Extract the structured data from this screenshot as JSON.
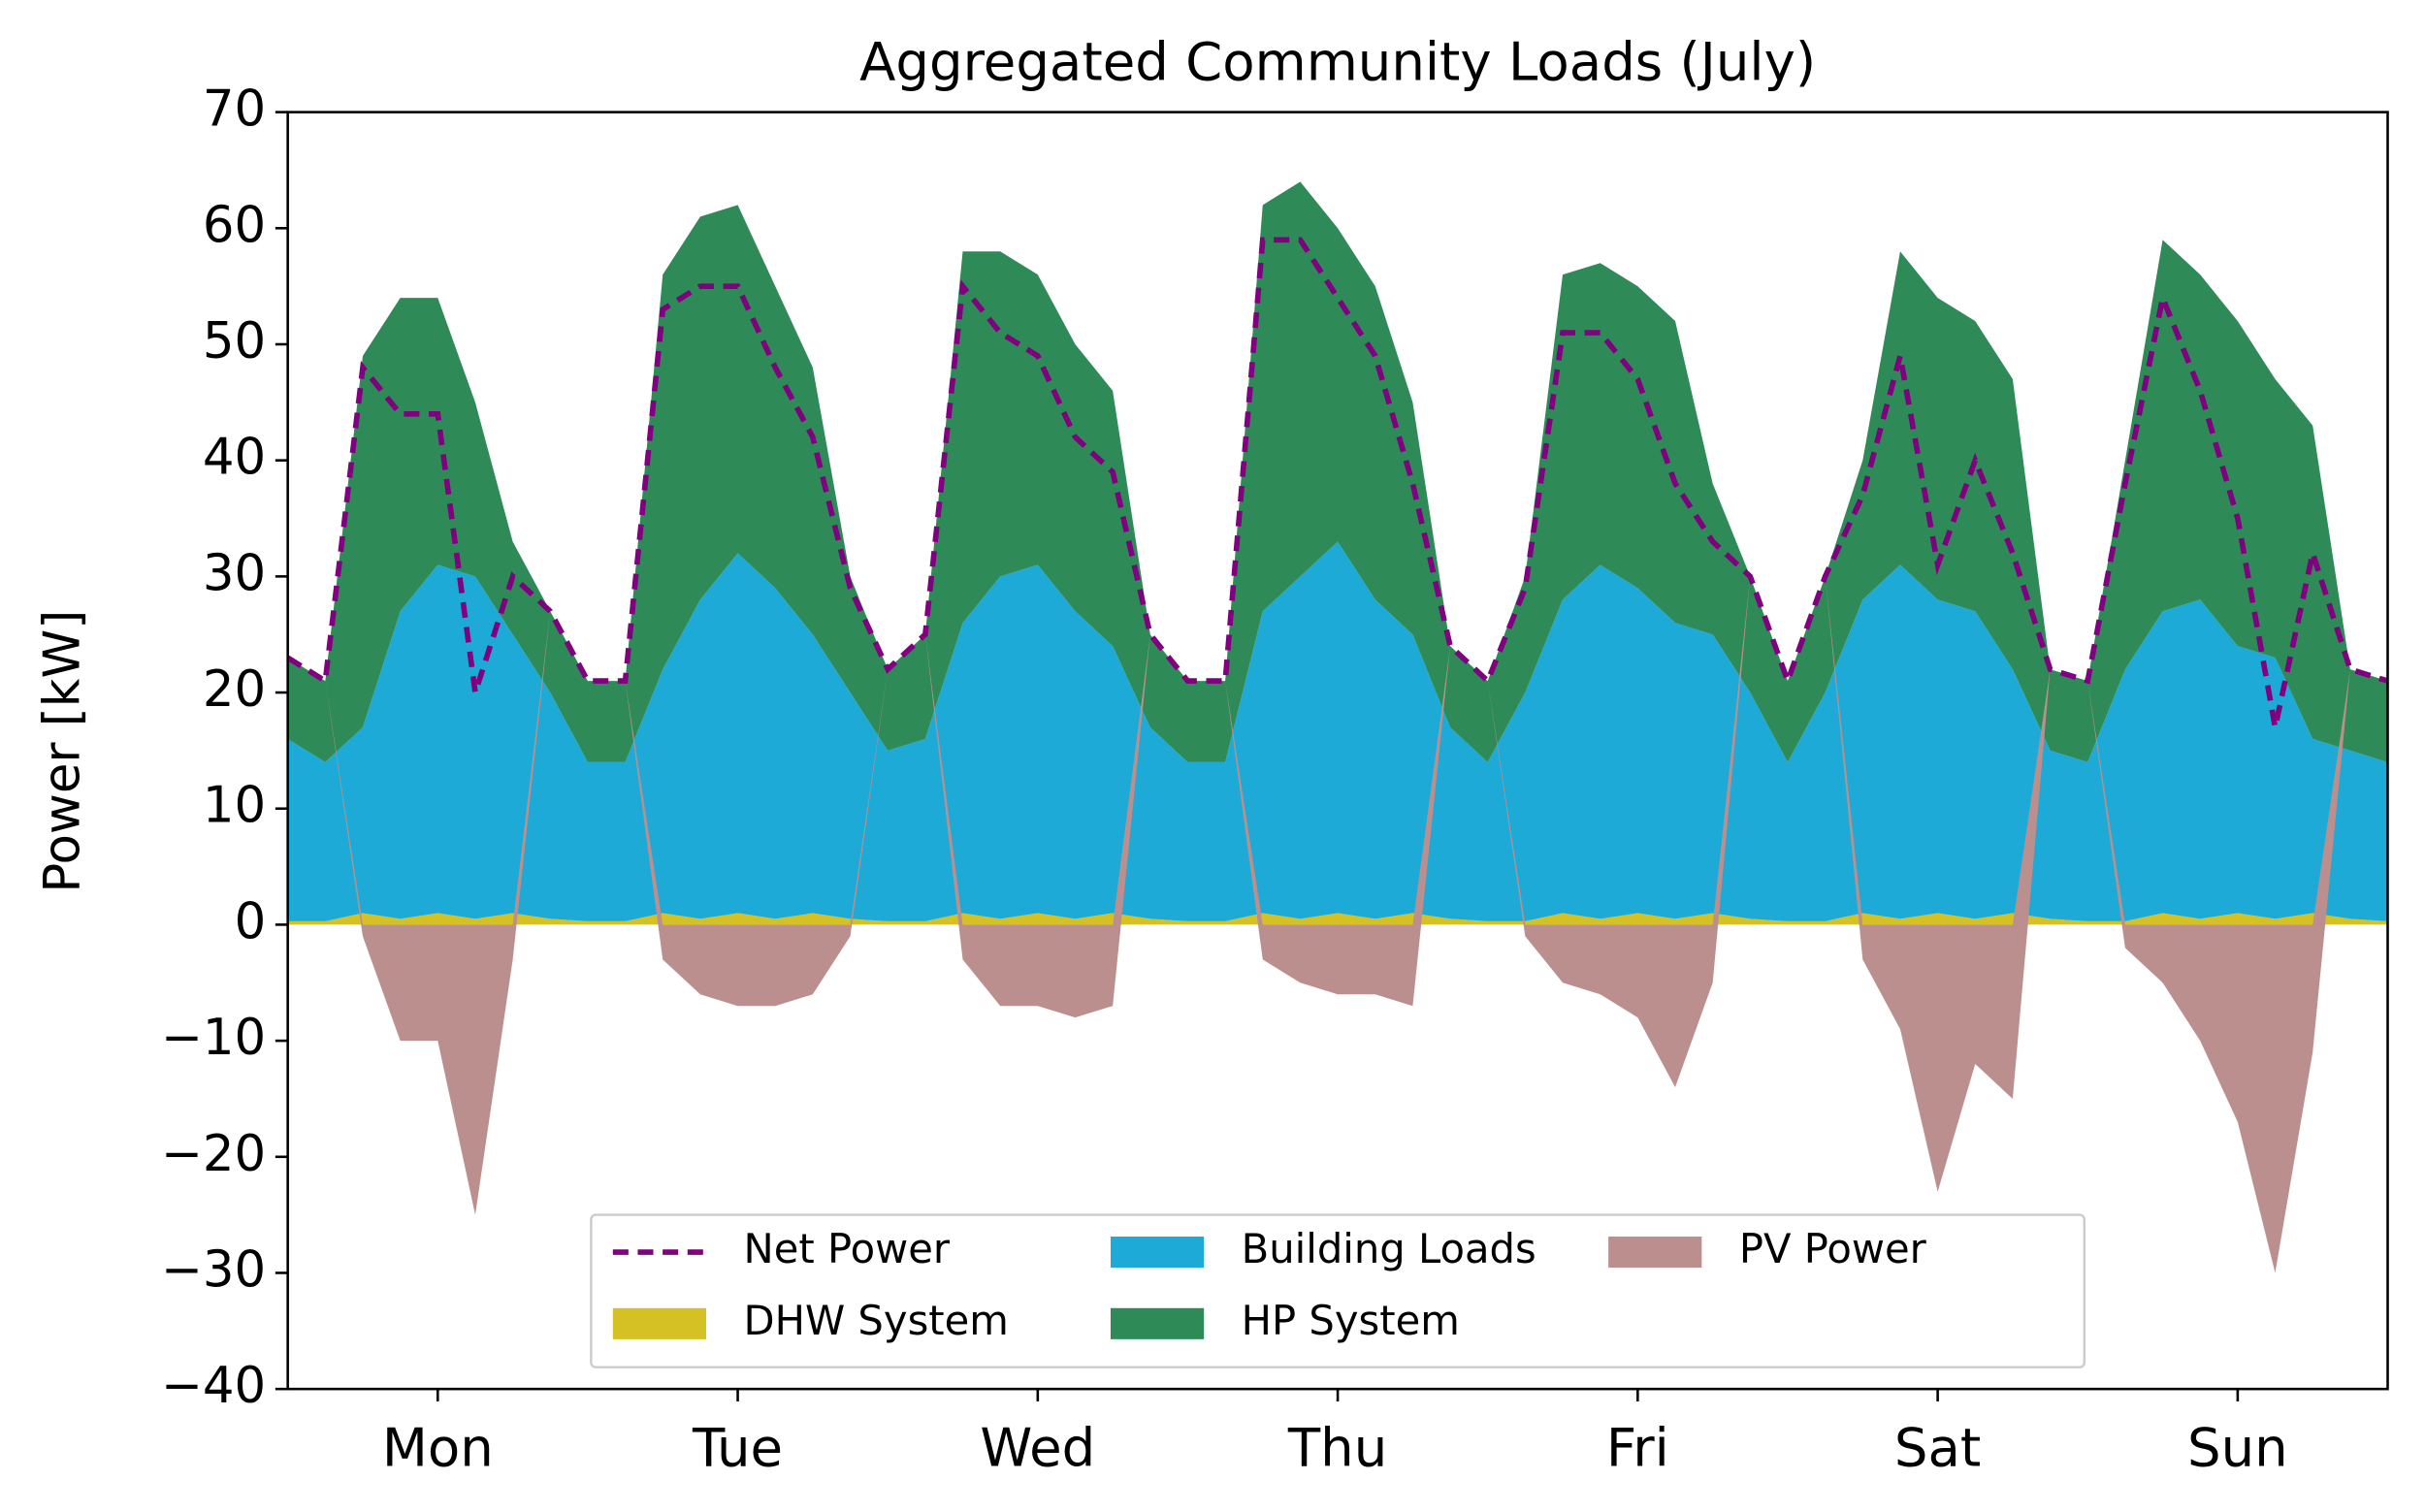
{
  "chart_data": {
    "type": "stacked_area",
    "title": "Aggregated Community Loads (July)",
    "y_label": "Power [kW]",
    "x": [
      0,
      3,
      6,
      9,
      12,
      15,
      18,
      21,
      24,
      27,
      30,
      33,
      36,
      39,
      42,
      45,
      48,
      51,
      54,
      57,
      60,
      63,
      66,
      69,
      72,
      75,
      78,
      81,
      84,
      87,
      90,
      93,
      96,
      99,
      102,
      105,
      108,
      111,
      114,
      117,
      120,
      123,
      126,
      129,
      132,
      135,
      138,
      141,
      144,
      147,
      150,
      153,
      156,
      159,
      162,
      165,
      168
    ],
    "xlim": [
      0,
      168
    ],
    "xticks": [
      {
        "value": 12,
        "label": "Mon"
      },
      {
        "value": 36,
        "label": "Tue"
      },
      {
        "value": 60,
        "label": "Wed"
      },
      {
        "value": 84,
        "label": "Thu"
      },
      {
        "value": 108,
        "label": "Fri"
      },
      {
        "value": 132,
        "label": "Sat"
      },
      {
        "value": 156,
        "label": "Sun"
      }
    ],
    "ylim": [
      -40,
      70
    ],
    "yticks": [
      {
        "value": -40,
        "label": "−40"
      },
      {
        "value": -30,
        "label": "−30"
      },
      {
        "value": -20,
        "label": "−20"
      },
      {
        "value": -10,
        "label": "−10"
      },
      0,
      10,
      20,
      30,
      40,
      50,
      60,
      70
    ],
    "legend": "lower center",
    "series": [
      {
        "name": "Net Power",
        "kind": "line",
        "dashed": true,
        "color": "#800080",
        "values": [
          23,
          21,
          48,
          44,
          44,
          20,
          30,
          27,
          21,
          21,
          53,
          55,
          55,
          48,
          42,
          29,
          22,
          25,
          55,
          51,
          49,
          42,
          39,
          25,
          21,
          21,
          59,
          59,
          54,
          49,
          38,
          24,
          21,
          29,
          51,
          51,
          47,
          38,
          33,
          30,
          21,
          30,
          37,
          49,
          31,
          40,
          32,
          22,
          21,
          38,
          54,
          46,
          35,
          17,
          32,
          22,
          21
        ]
      },
      {
        "name": "DHW System",
        "kind": "area",
        "color": "#d6c125",
        "values": [
          0.3,
          0.3,
          1,
          0.5,
          1,
          0.5,
          1,
          0.5,
          0.3,
          0.3,
          1,
          0.5,
          1,
          0.5,
          1,
          0.5,
          0.3,
          0.3,
          1,
          0.5,
          1,
          0.5,
          1,
          0.5,
          0.3,
          0.3,
          1,
          0.5,
          1,
          0.5,
          1,
          0.5,
          0.3,
          0.3,
          1,
          0.5,
          1,
          0.5,
          1,
          0.5,
          0.3,
          0.3,
          1,
          0.5,
          1,
          0.5,
          1,
          0.5,
          0.3,
          0.3,
          1,
          0.5,
          1,
          0.5,
          1,
          0.5,
          0.3
        ]
      },
      {
        "name": "Building Loads",
        "kind": "area",
        "color": "#1eaad6",
        "values": [
          15.7,
          13.7,
          16,
          26.5,
          30,
          29.5,
          24,
          19.5,
          13.7,
          13.7,
          21,
          27.5,
          31,
          28.5,
          24,
          19.5,
          14.7,
          15.7,
          25,
          29.5,
          30,
          26.5,
          23,
          16.5,
          13.7,
          13.7,
          26,
          29.5,
          32,
          27.5,
          24,
          16.5,
          13.7,
          19.7,
          27,
          30.5,
          28,
          25.5,
          24,
          19.5,
          13.7,
          19.7,
          27,
          30.5,
          27,
          26.5,
          21,
          14.5,
          13.7,
          21.7,
          26,
          27.5,
          23,
          22.5,
          15,
          14.5,
          13.7
        ]
      },
      {
        "name": "HP System",
        "kind": "area",
        "color": "#2e8b57",
        "values": [
          7,
          7,
          32,
          27,
          23,
          15,
          8,
          7,
          7,
          7,
          34,
          33,
          30,
          26,
          23,
          10,
          7,
          9,
          32,
          28,
          25,
          23,
          22,
          8,
          7,
          7,
          35,
          34,
          27,
          27,
          20,
          7,
          7,
          10,
          28,
          26,
          26,
          26,
          13,
          10,
          7,
          10,
          12,
          27,
          26,
          25,
          25,
          7,
          7,
          18,
          32,
          28,
          28,
          24,
          27,
          7,
          7
        ]
      },
      {
        "name": "PV Power",
        "kind": "area",
        "color": "#bc8f8f",
        "values": [
          0,
          0,
          -1,
          -10,
          -10,
          -25,
          -3,
          0,
          0,
          0,
          -3,
          -6,
          -7,
          -7,
          -6,
          -1,
          0,
          0,
          -3,
          -7,
          -7,
          -8,
          -7,
          0,
          0,
          0,
          -3,
          -5,
          -6,
          -6,
          -7,
          0,
          0,
          -1,
          -5,
          -6,
          -8,
          -14,
          -5,
          0,
          0,
          0,
          -3,
          -9,
          -23,
          -12,
          -15,
          0,
          0,
          -2,
          -5,
          -10,
          -17,
          -30,
          -11,
          0,
          0
        ]
      }
    ]
  }
}
